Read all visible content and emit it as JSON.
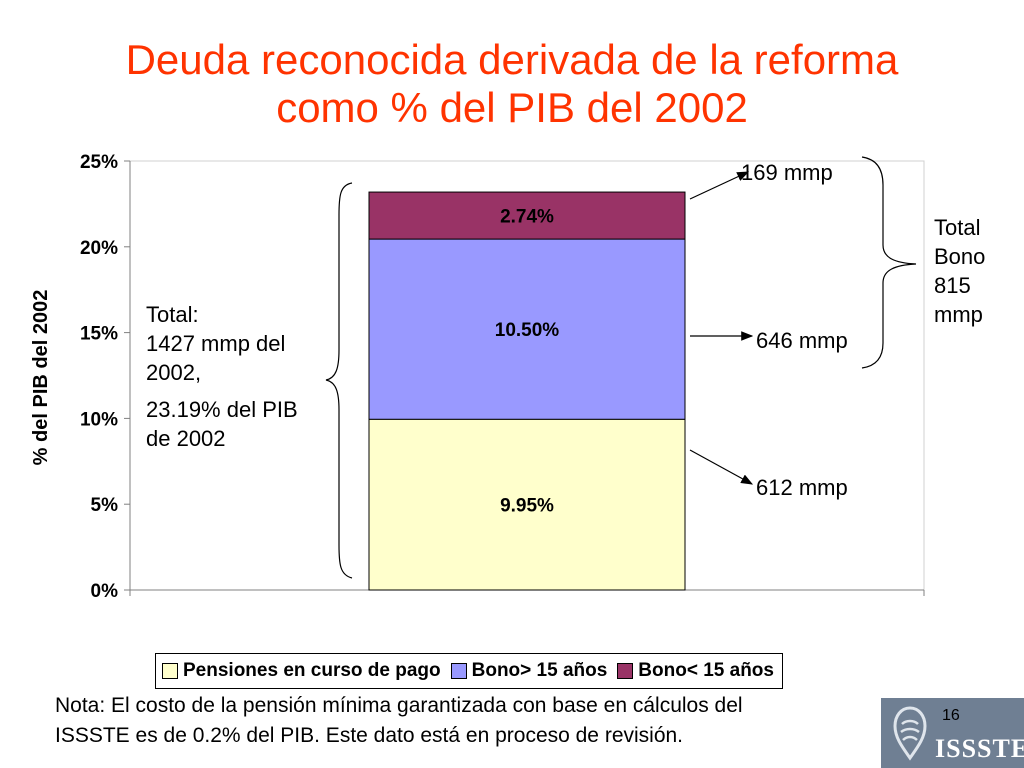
{
  "title": {
    "line1": "Deuda reconocida derivada de la reforma",
    "line2": "como % del PIB del 2002"
  },
  "chart_data": {
    "type": "bar",
    "stacked": true,
    "categories": [
      ""
    ],
    "series": [
      {
        "name": "Pensiones en curso de pago",
        "values": [
          9.95
        ],
        "label": "9.95%",
        "color": "#ffffcc"
      },
      {
        "name": "Bono> 15 años",
        "values": [
          10.5
        ],
        "label": "10.50%",
        "color": "#9999ff"
      },
      {
        "name": "Bono< 15 años",
        "values": [
          2.74
        ],
        "label": "2.74%",
        "color": "#993366"
      }
    ],
    "ylabel": "% del PIB del 2002",
    "ylim": [
      0,
      25
    ],
    "yticks": [
      0,
      5,
      10,
      15,
      20,
      25
    ],
    "ytick_labels": [
      "0%",
      "5%",
      "10%",
      "15%",
      "20%",
      "25%"
    ],
    "grid": false,
    "legend": "bottom",
    "annotations": {
      "right": [
        "169 mmp",
        "646 mmp",
        "612 mmp"
      ],
      "total_bono": [
        "Total",
        "Bono",
        "815",
        "mmp"
      ],
      "total_left": [
        "Total:",
        "1427 mmp del",
        "2002,",
        "23.19% del PIB",
        "de 2002"
      ]
    }
  },
  "footnote": {
    "line1": "Nota: El costo de la pensión mínima garantizada con base en cálculos del",
    "line2": "ISSSTE es de 0.2% del PIB. Este dato está en proceso de revisión."
  },
  "page_number": "16",
  "logo": {
    "text": "ISSSTE"
  }
}
